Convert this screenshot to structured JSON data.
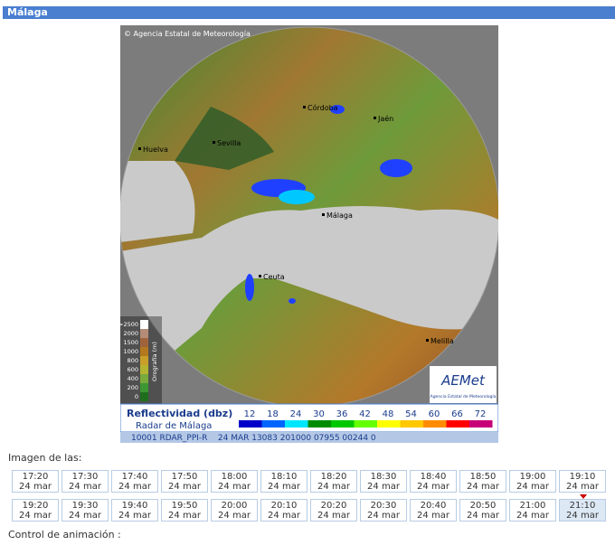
{
  "header": {
    "title": "Málaga"
  },
  "radar": {
    "copyright": "© Agencia Estatal de Meteorología",
    "cities": [
      "Córdoba",
      "Jaén",
      "Huelva",
      "Sevilla",
      "Málaga",
      "Ceuta",
      "Melilla"
    ],
    "logo": {
      "title": "AEMet",
      "subtitle": "Agencia Estatal de Meteorología"
    },
    "legend": {
      "title": "Reflectividad (dbz)",
      "subtitle": "Radar de Málaga",
      "levels": [
        "12",
        "18",
        "24",
        "30",
        "36",
        "42",
        "48",
        "54",
        "60",
        "66",
        "72"
      ],
      "colors": [
        "#0000c8",
        "#0064ff",
        "#00e6ff",
        "#008c00",
        "#00c800",
        "#64ff00",
        "#ffff00",
        "#ffc800",
        "#ff8c00",
        "#ff0000",
        "#c80078"
      ]
    },
    "orography": {
      "title": "Orografía (m)",
      "levels": [
        ">2500",
        "2000",
        "1500",
        "1000",
        "800",
        "600",
        "400",
        "200",
        "0"
      ],
      "colors": [
        "#ffffff",
        "#b48c78",
        "#a0643c",
        "#b4781e",
        "#c8a028",
        "#b4b432",
        "#78aa3c",
        "#3c9632",
        "#1e6e1e"
      ]
    },
    "strip": "10001 RDAR_PPI-R    24 MAR 13083 201000 07955 00244 0"
  },
  "times": {
    "label": "Imagen de las:",
    "rows": [
      [
        {
          "time": "17:20",
          "date": "24 mar"
        },
        {
          "time": "17:30",
          "date": "24 mar"
        },
        {
          "time": "17:40",
          "date": "24 mar"
        },
        {
          "time": "17:50",
          "date": "24 mar"
        },
        {
          "time": "18:00",
          "date": "24 mar"
        },
        {
          "time": "18:10",
          "date": "24 mar"
        },
        {
          "time": "18:20",
          "date": "24 mar"
        },
        {
          "time": "18:30",
          "date": "24 mar"
        },
        {
          "time": "18:40",
          "date": "24 mar"
        },
        {
          "time": "18:50",
          "date": "24 mar"
        },
        {
          "time": "19:00",
          "date": "24 mar"
        },
        {
          "time": "19:10",
          "date": "24 mar"
        }
      ],
      [
        {
          "time": "19:20",
          "date": "24 mar"
        },
        {
          "time": "19:30",
          "date": "24 mar"
        },
        {
          "time": "19:40",
          "date": "24 mar"
        },
        {
          "time": "19:50",
          "date": "24 mar"
        },
        {
          "time": "20:00",
          "date": "24 mar"
        },
        {
          "time": "20:10",
          "date": "24 mar"
        },
        {
          "time": "20:20",
          "date": "24 mar"
        },
        {
          "time": "20:30",
          "date": "24 mar"
        },
        {
          "time": "20:40",
          "date": "24 mar"
        },
        {
          "time": "20:50",
          "date": "24 mar"
        },
        {
          "time": "21:00",
          "date": "24 mar"
        },
        {
          "time": "21:10",
          "date": "24 mar"
        }
      ]
    ]
  },
  "animation_label": "Control de animación :"
}
